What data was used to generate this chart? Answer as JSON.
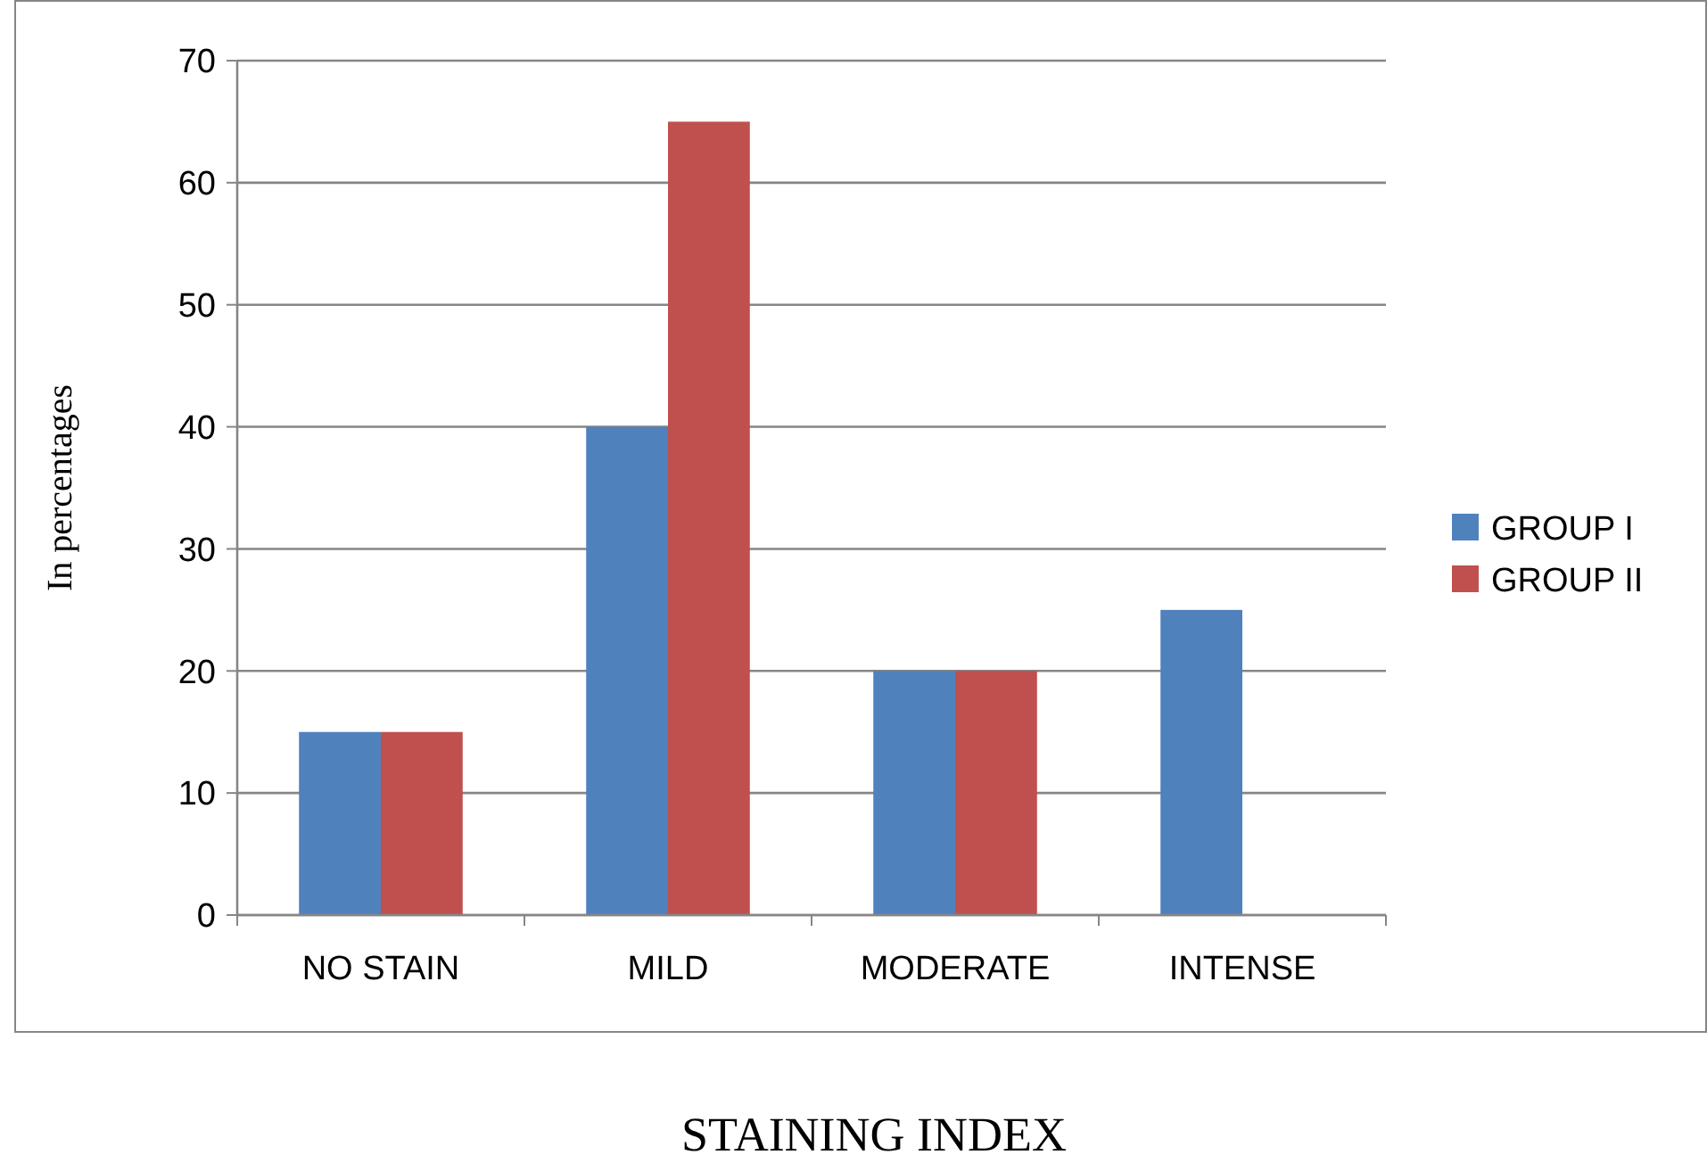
{
  "chart_data": {
    "type": "bar",
    "xlabel": "STAINING INDEX",
    "ylabel": "In percentages",
    "categories": [
      "NO STAIN",
      "MILD",
      "MODERATE",
      "INTENSE"
    ],
    "series": [
      {
        "name": "GROUP I",
        "color": "#4f81bd",
        "values": [
          15,
          40,
          20,
          25
        ]
      },
      {
        "name": "GROUP II",
        "color": "#c0504d",
        "values": [
          15,
          65,
          20,
          0
        ]
      }
    ],
    "ylim": [
      0,
      70
    ],
    "yticks": [
      0,
      10,
      20,
      30,
      40,
      50,
      60,
      70
    ],
    "grid": "y",
    "legend": "right"
  }
}
